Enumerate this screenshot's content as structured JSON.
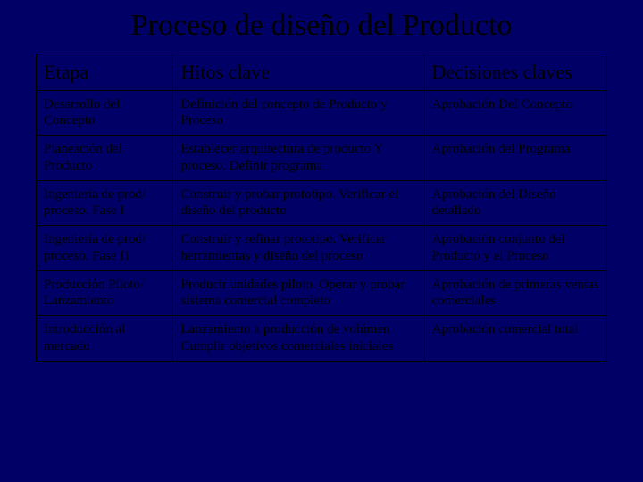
{
  "title": "Proceso de diseño del Producto",
  "table": {
    "background_color": "#000066",
    "border_color": "#000000",
    "text_color": "#000000",
    "header_fontsize": 22,
    "body_fontsize": 15,
    "column_widths_pct": [
      24,
      44,
      32
    ],
    "columns": [
      "Etapa",
      "Hitos clave",
      "Decisiones claves"
    ],
    "rows": [
      {
        "etapa": "Desarrollo del Concepto",
        "hitos": "Definición del concepto de Producto y Proceso",
        "decisiones": "Aprobación Del Concepto"
      },
      {
        "etapa": "Planeación del Producto",
        "hitos": "Establecer arquitectura de producto Y proceso. Definir programa",
        "decisiones": "Aprobación del Programa"
      },
      {
        "etapa": "Ingeniería de prod/ proceso. Fase I",
        "hitos": "Construir y probar prototipo. Verificar el diseño del producto",
        "decisiones": "Aprobación del Diseño detallado"
      },
      {
        "etapa": "Ingeniería de prod/ proceso. Fase II",
        "hitos": "Construir y refinar prototipo. Verificar herramientas y diseño del proceso",
        "decisiones": "Aprobación conjunto del Producto y el Proceso"
      },
      {
        "etapa": "Producción Piloto/ Lanzamiento",
        "hitos": "Producir unidades piloto. Operar y probar sistema comercial completo",
        "decisiones": "Aprobación de primeras ventas comerciales"
      },
      {
        "etapa": "Introducción al mercado",
        "hitos": "Lanzamiento a producción de volúmen Cumplir objetivos comerciales iniciales",
        "decisiones": "Aprobación comercial total"
      }
    ]
  }
}
